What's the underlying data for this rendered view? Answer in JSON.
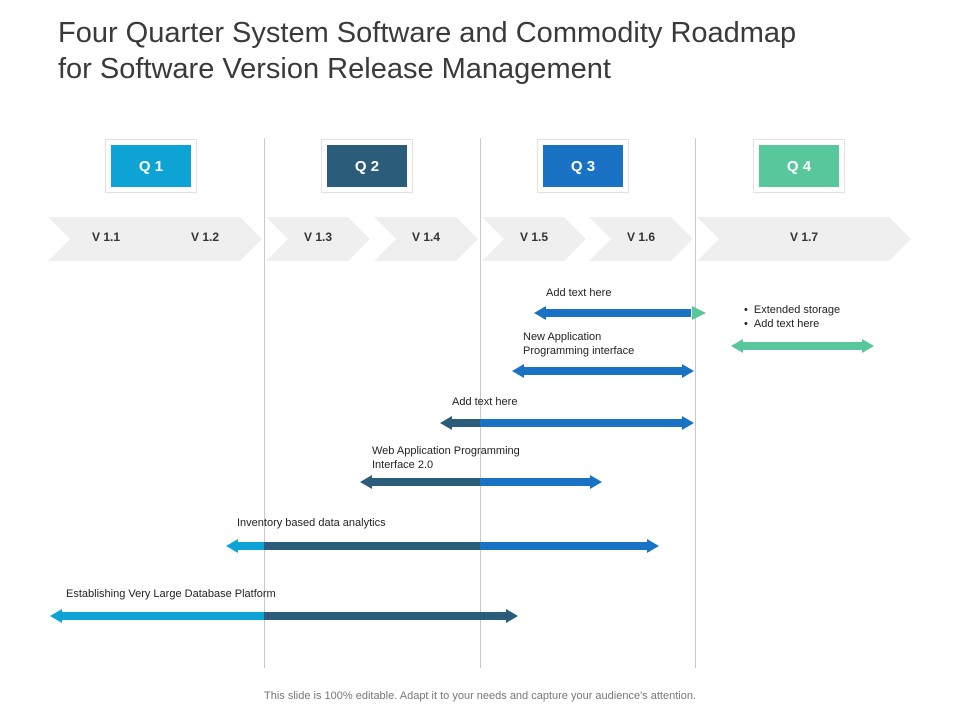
{
  "title": {
    "line1": "Four Quarter System Software and Commodity Roadmap",
    "line2": "for Software Version Release Management"
  },
  "quarters": [
    {
      "label": "Q 1",
      "color": "#0ea3d5"
    },
    {
      "label": "Q 2",
      "color": "#2b5c7a"
    },
    {
      "label": "Q 3",
      "color": "#1a72c4"
    },
    {
      "label": "Q 4",
      "color": "#58c79b"
    }
  ],
  "versions": [
    "V 1.1",
    "V 1.2",
    "V 1.3",
    "V 1.4",
    "V 1.5",
    "V 1.6",
    "V 1.7"
  ],
  "tasks": [
    {
      "label": "Add text here"
    },
    {
      "label_line1": "New Application",
      "label_line2": "Programming interface"
    },
    {
      "label": "Add text here"
    },
    {
      "label_line1": "Web Application Programming",
      "label_line2": "Interface 2.0"
    },
    {
      "label": "Inventory  based data analytics"
    },
    {
      "label": "Establishing Very Large Database Platform"
    }
  ],
  "q4_notes": [
    "Extended storage",
    "Add text here"
  ],
  "footer": "This slide is 100% editable. Adapt it to your needs and capture your audience's attention.",
  "colors": {
    "cyan": "#0ea3d5",
    "navy": "#2b5c7a",
    "blue": "#1a72c4",
    "green": "#58c79b",
    "chevron": "#efefef"
  }
}
